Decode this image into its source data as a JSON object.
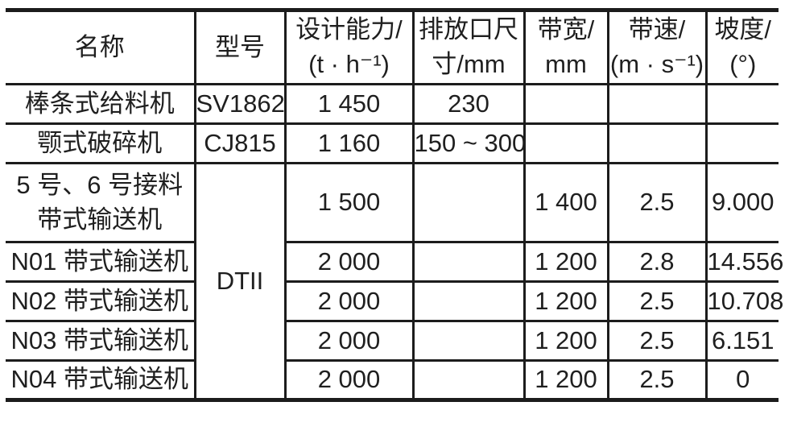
{
  "table": {
    "colors": {
      "border": "#1c1c1c",
      "text": "#1f1f1f",
      "background": "#ffffff"
    },
    "header": {
      "name": "名称",
      "model": "型号",
      "capacity": "设计能力/\n(t · h⁻¹)",
      "outlet": "排放口尺\n寸/mm",
      "belt_width": "带宽/\nmm",
      "belt_speed": "带速/\n(m · s⁻¹)",
      "slope": "坡度/\n(°)"
    },
    "rows": [
      {
        "name": "棒条式给料机",
        "model": "SV1862",
        "capacity": "1 450",
        "outlet": "230",
        "belt_width": "",
        "belt_speed": "",
        "slope": ""
      },
      {
        "name": "颚式破碎机",
        "model": "CJ815",
        "capacity": "1 160",
        "outlet": "150 ~ 300",
        "belt_width": "",
        "belt_speed": "",
        "slope": ""
      },
      {
        "name": "5 号、6 号接料\n带式输送机",
        "model": "DTII",
        "capacity": "1 500",
        "outlet": "",
        "belt_width": "1 400",
        "belt_speed": "2.5",
        "slope": "9.000"
      },
      {
        "name": "N01 带式输送机",
        "capacity": "2 000",
        "outlet": "",
        "belt_width": "1 200",
        "belt_speed": "2.8",
        "slope": "14.556"
      },
      {
        "name": "N02 带式输送机",
        "capacity": "2 000",
        "outlet": "",
        "belt_width": "1 200",
        "belt_speed": "2.5",
        "slope": "10.708"
      },
      {
        "name": "N03 带式输送机",
        "capacity": "2 000",
        "outlet": "",
        "belt_width": "1 200",
        "belt_speed": "2.5",
        "slope": "6.151"
      },
      {
        "name": "N04 带式输送机",
        "capacity": "2 000",
        "outlet": "",
        "belt_width": "1 200",
        "belt_speed": "2.5",
        "slope": "0"
      }
    ]
  }
}
